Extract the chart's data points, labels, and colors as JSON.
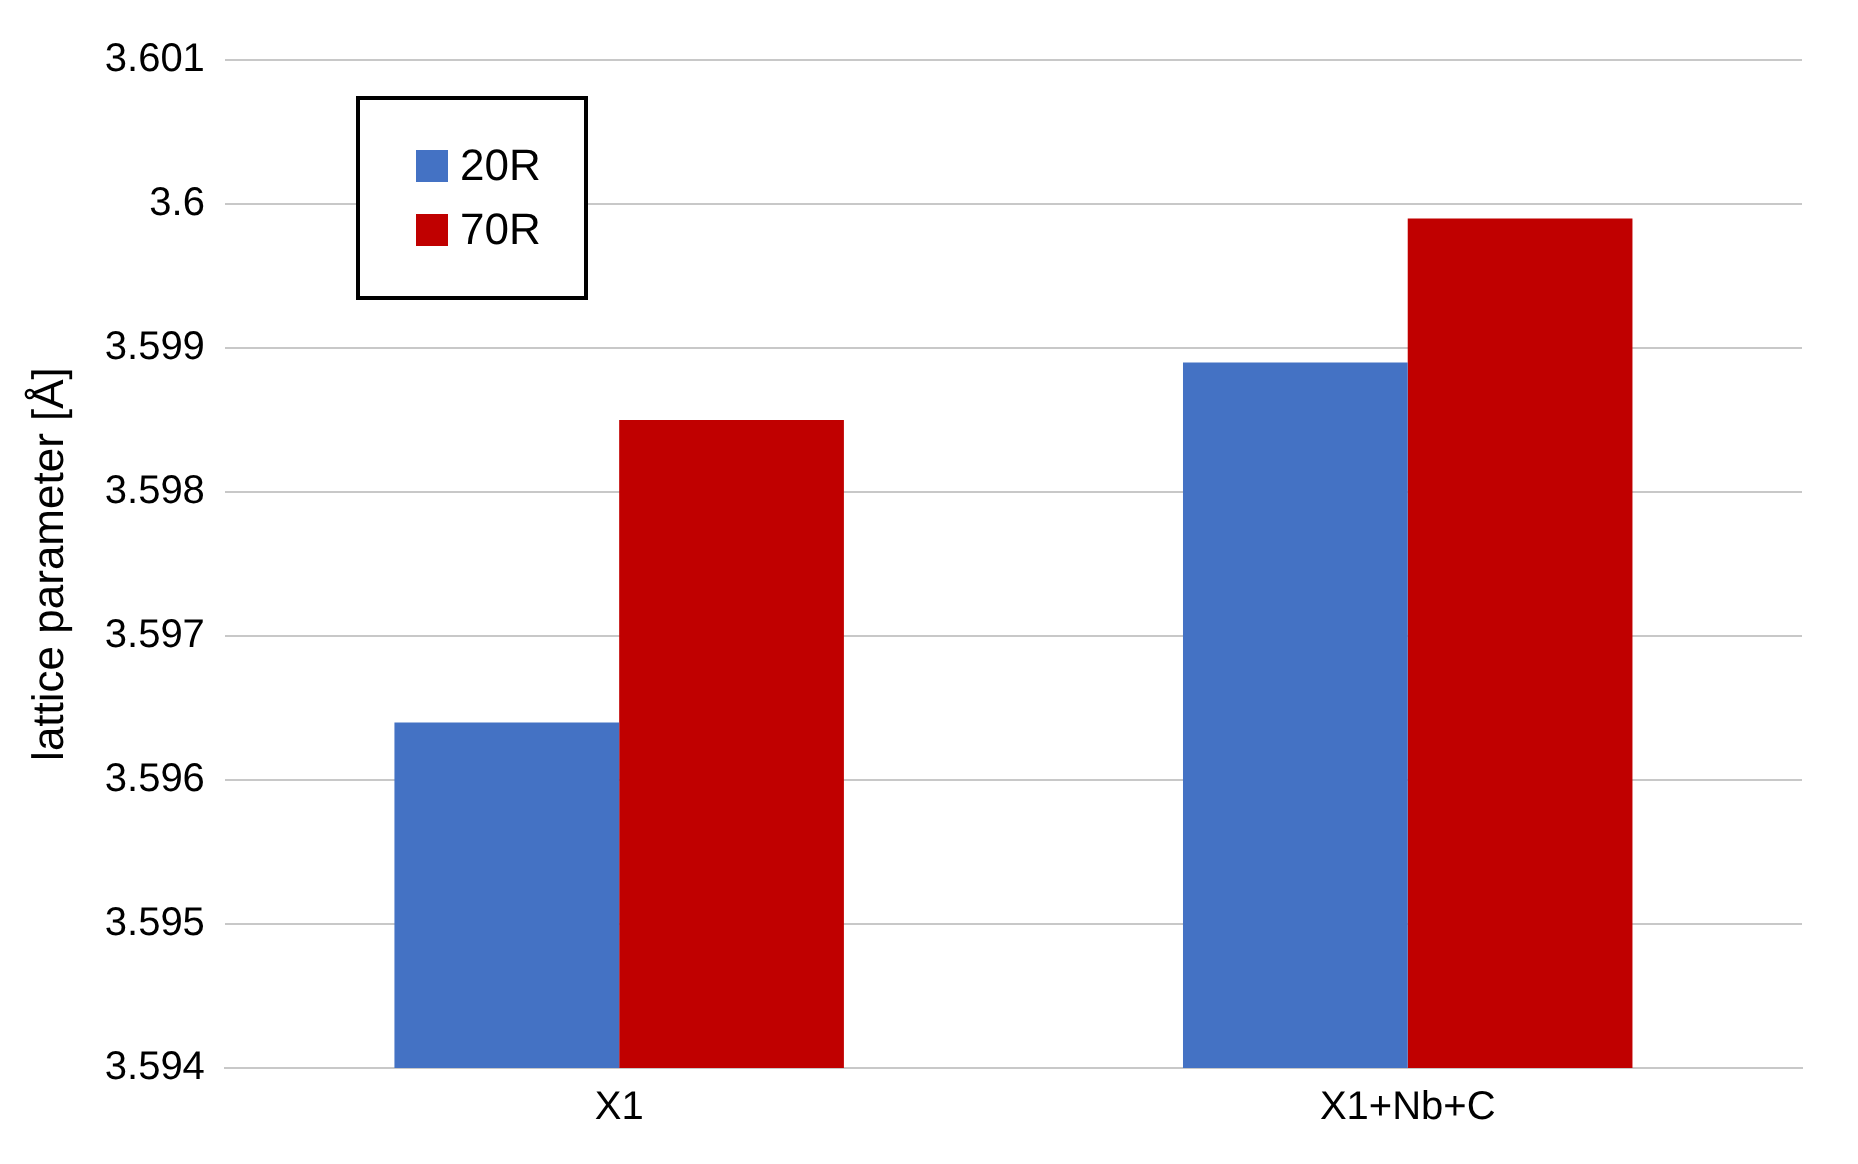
{
  "chart_data": {
    "type": "bar",
    "ylabel": "lattice parameter [Å]",
    "categories": [
      "X1",
      "X1+Nb+C"
    ],
    "series": [
      {
        "name": "20R",
        "color": "#4472c4",
        "values": [
          3.5964,
          3.5989
        ]
      },
      {
        "name": "70R",
        "color": "#c00000",
        "values": [
          3.5985,
          3.5999
        ]
      }
    ],
    "ylim": [
      3.594,
      3.601
    ],
    "yticks": [
      3.594,
      3.595,
      3.596,
      3.597,
      3.598,
      3.599,
      3.6,
      3.601
    ],
    "grid": "y",
    "legend": "top left"
  }
}
